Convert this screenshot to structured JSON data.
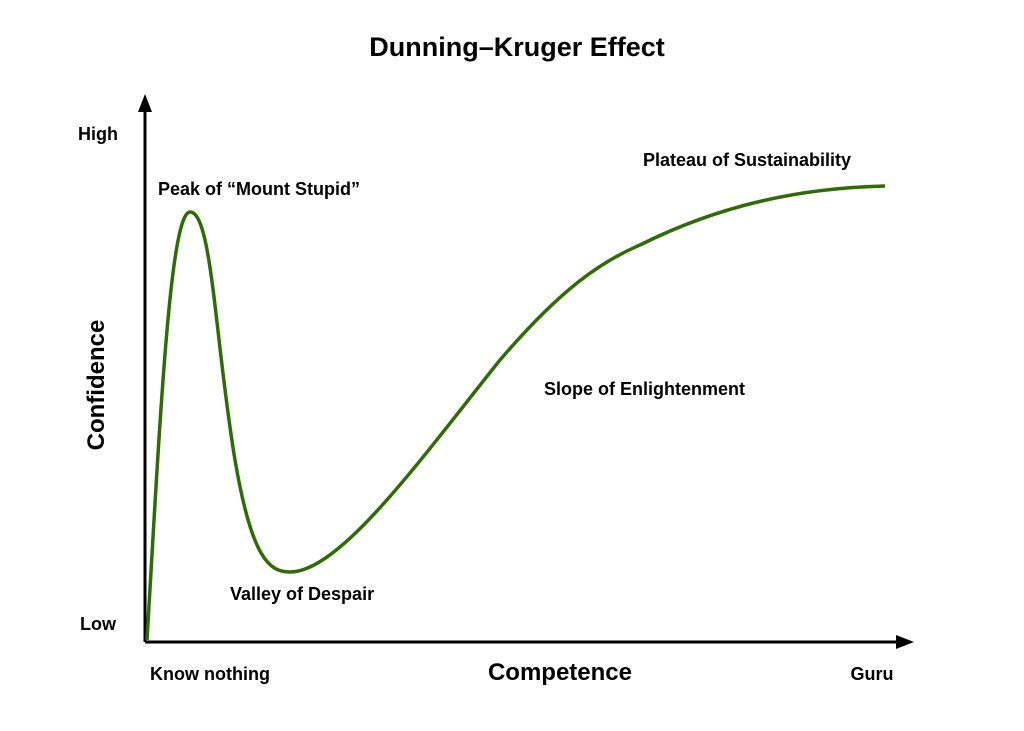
{
  "title": "Dunning–Kruger Effect",
  "axes": {
    "y_label": "Confidence",
    "y_high": "High",
    "y_low": "Low",
    "x_label": "Competence",
    "x_start": "Know nothing",
    "x_end": "Guru"
  },
  "annotations": {
    "peak": "Peak of “Mount Stupid”",
    "valley": "Valley of Despair",
    "slope": "Slope of Enlightenment",
    "plateau": "Plateau of Sustainability"
  }
}
